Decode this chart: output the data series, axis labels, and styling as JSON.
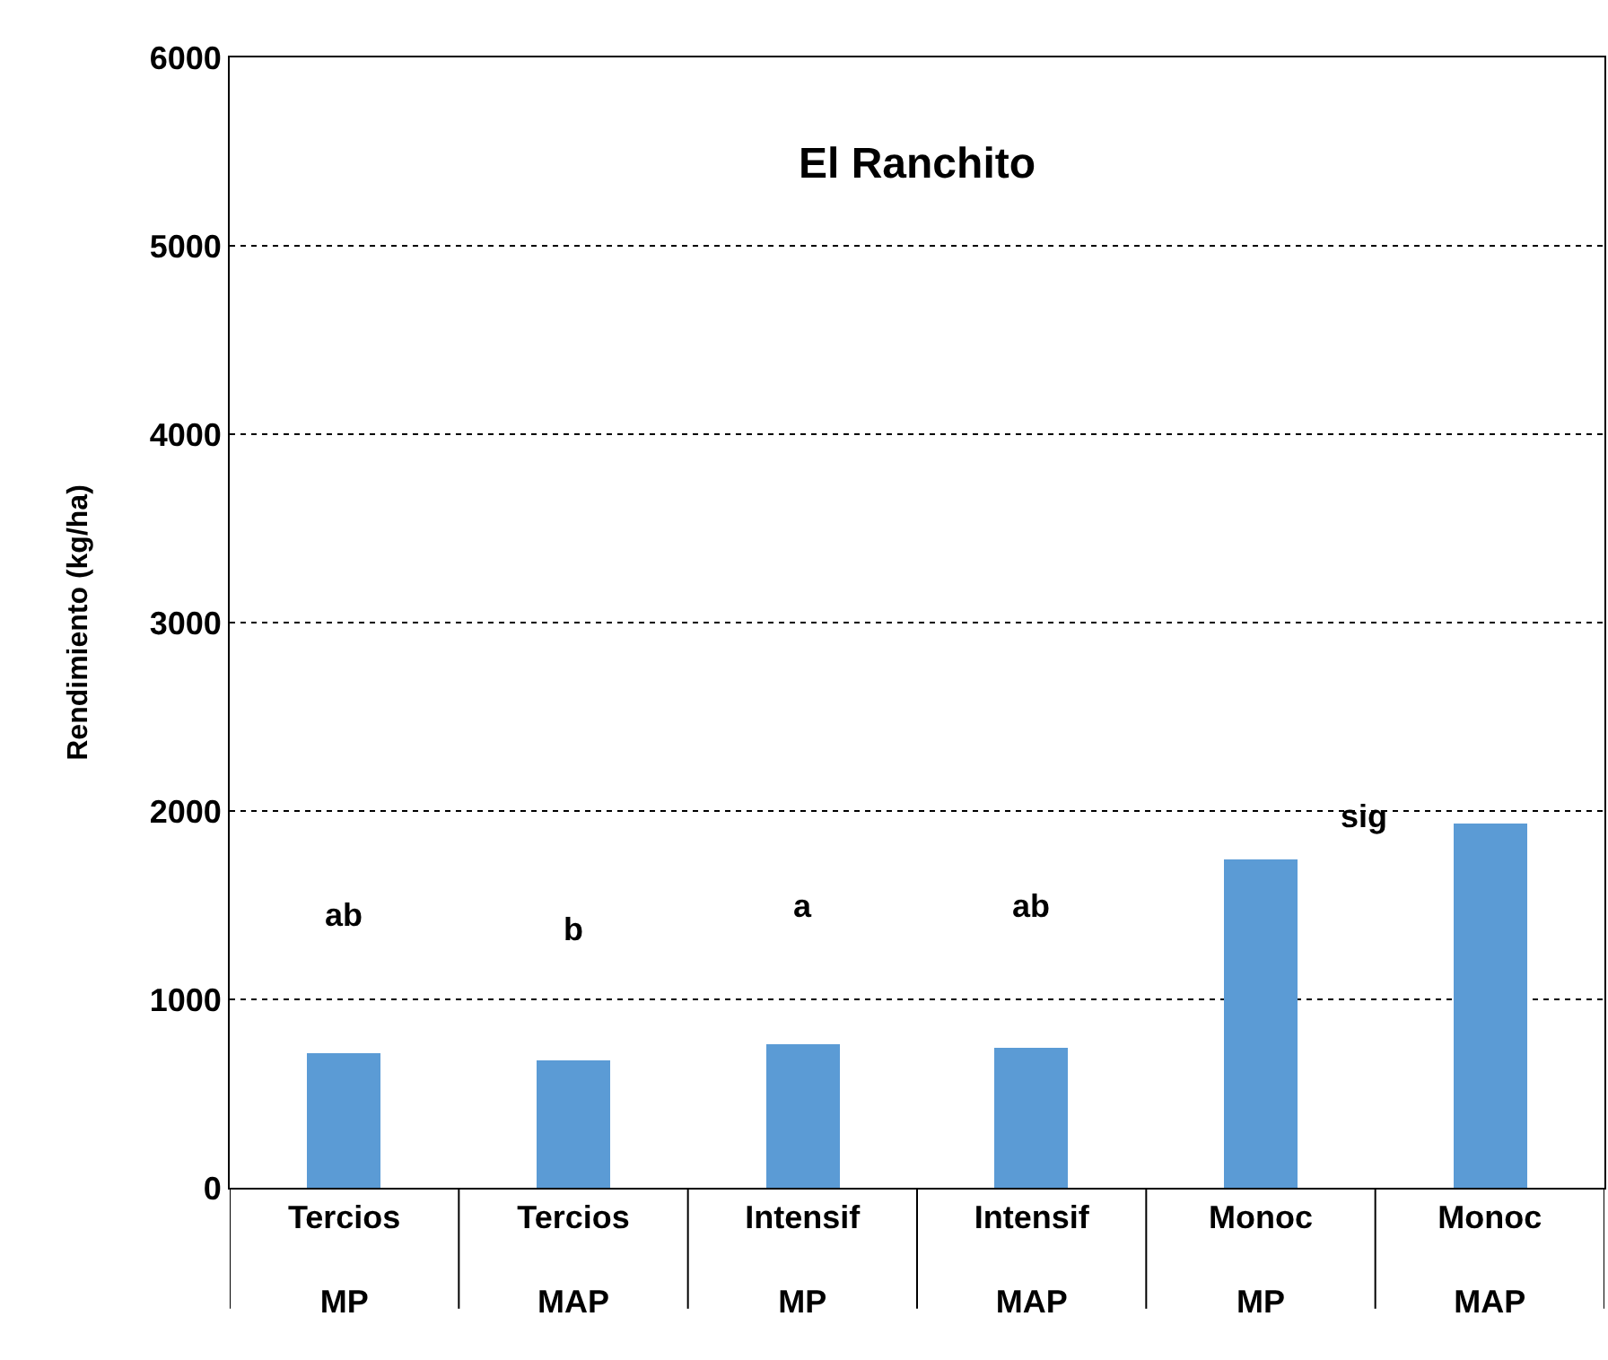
{
  "chart_data": {
    "type": "bar",
    "title": "El Ranchito",
    "ylabel": "Rendimiento (kg/ha)",
    "categories": [
      "Tercios MP",
      "Tercios MAP",
      "Intensif MP",
      "Intensif MAP",
      "Monoc MP",
      "Monoc MAP"
    ],
    "values": [
      710,
      680,
      760,
      740,
      1740,
      1930
    ],
    "color": "#5b9bd5",
    "ylim": [
      0,
      6000
    ],
    "yticks": [
      0,
      1000,
      2000,
      3000,
      4000,
      5000,
      6000
    ],
    "grid": "y",
    "annotations": [
      "ab",
      "b",
      "a",
      "ab",
      "sig"
    ]
  }
}
